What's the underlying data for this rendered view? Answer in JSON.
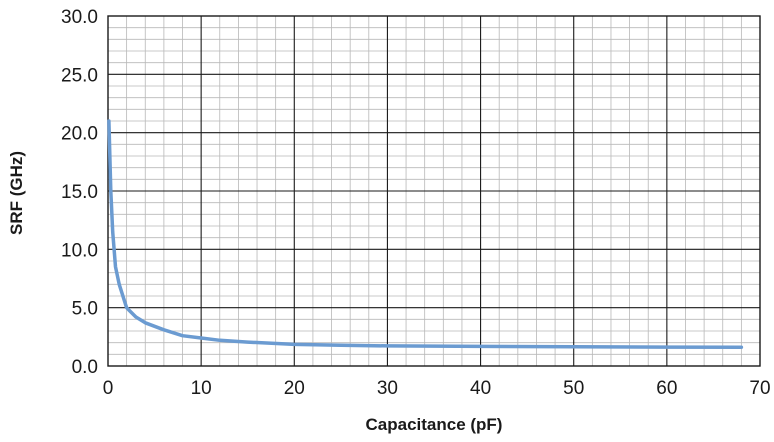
{
  "chart_data": {
    "type": "line",
    "title": "",
    "xlabel": "Capacitance (pF)",
    "ylabel": "SRF (GHz)",
    "xlim": [
      0,
      70
    ],
    "ylim": [
      0,
      30
    ],
    "x_ticks": [
      0,
      10,
      20,
      30,
      40,
      50,
      60,
      70
    ],
    "x_tick_labels": [
      "0",
      "10",
      "20",
      "30",
      "40",
      "50",
      "60",
      "70"
    ],
    "y_ticks": [
      0,
      5,
      10,
      15,
      20,
      25,
      30
    ],
    "y_tick_labels": [
      "0.0",
      "5.0",
      "10.0",
      "15.0",
      "20.0",
      "25.0",
      "30.0"
    ],
    "grid": {
      "major": true,
      "minor": true,
      "minor_x_step": 2,
      "minor_y_step": 1
    },
    "legend": "none",
    "colors": {
      "line": "#6b9bd1",
      "major_grid": "#1a1a1a",
      "minor_grid": "#b8b8b8"
    },
    "series": [
      {
        "x": [
          0.1,
          0.3,
          0.5,
          0.8,
          1.2,
          2.0,
          3.0,
          4.0,
          5.0,
          6.0,
          8.0,
          10.0,
          12.0,
          15.0,
          20.0,
          25.0,
          30.0,
          40.0,
          50.0,
          60.0,
          68.0
        ],
        "y": [
          21.0,
          15.0,
          11.5,
          8.5,
          7.0,
          5.0,
          4.2,
          3.7,
          3.4,
          3.1,
          2.6,
          2.4,
          2.2,
          2.05,
          1.85,
          1.78,
          1.72,
          1.68,
          1.65,
          1.62,
          1.6
        ]
      }
    ]
  }
}
